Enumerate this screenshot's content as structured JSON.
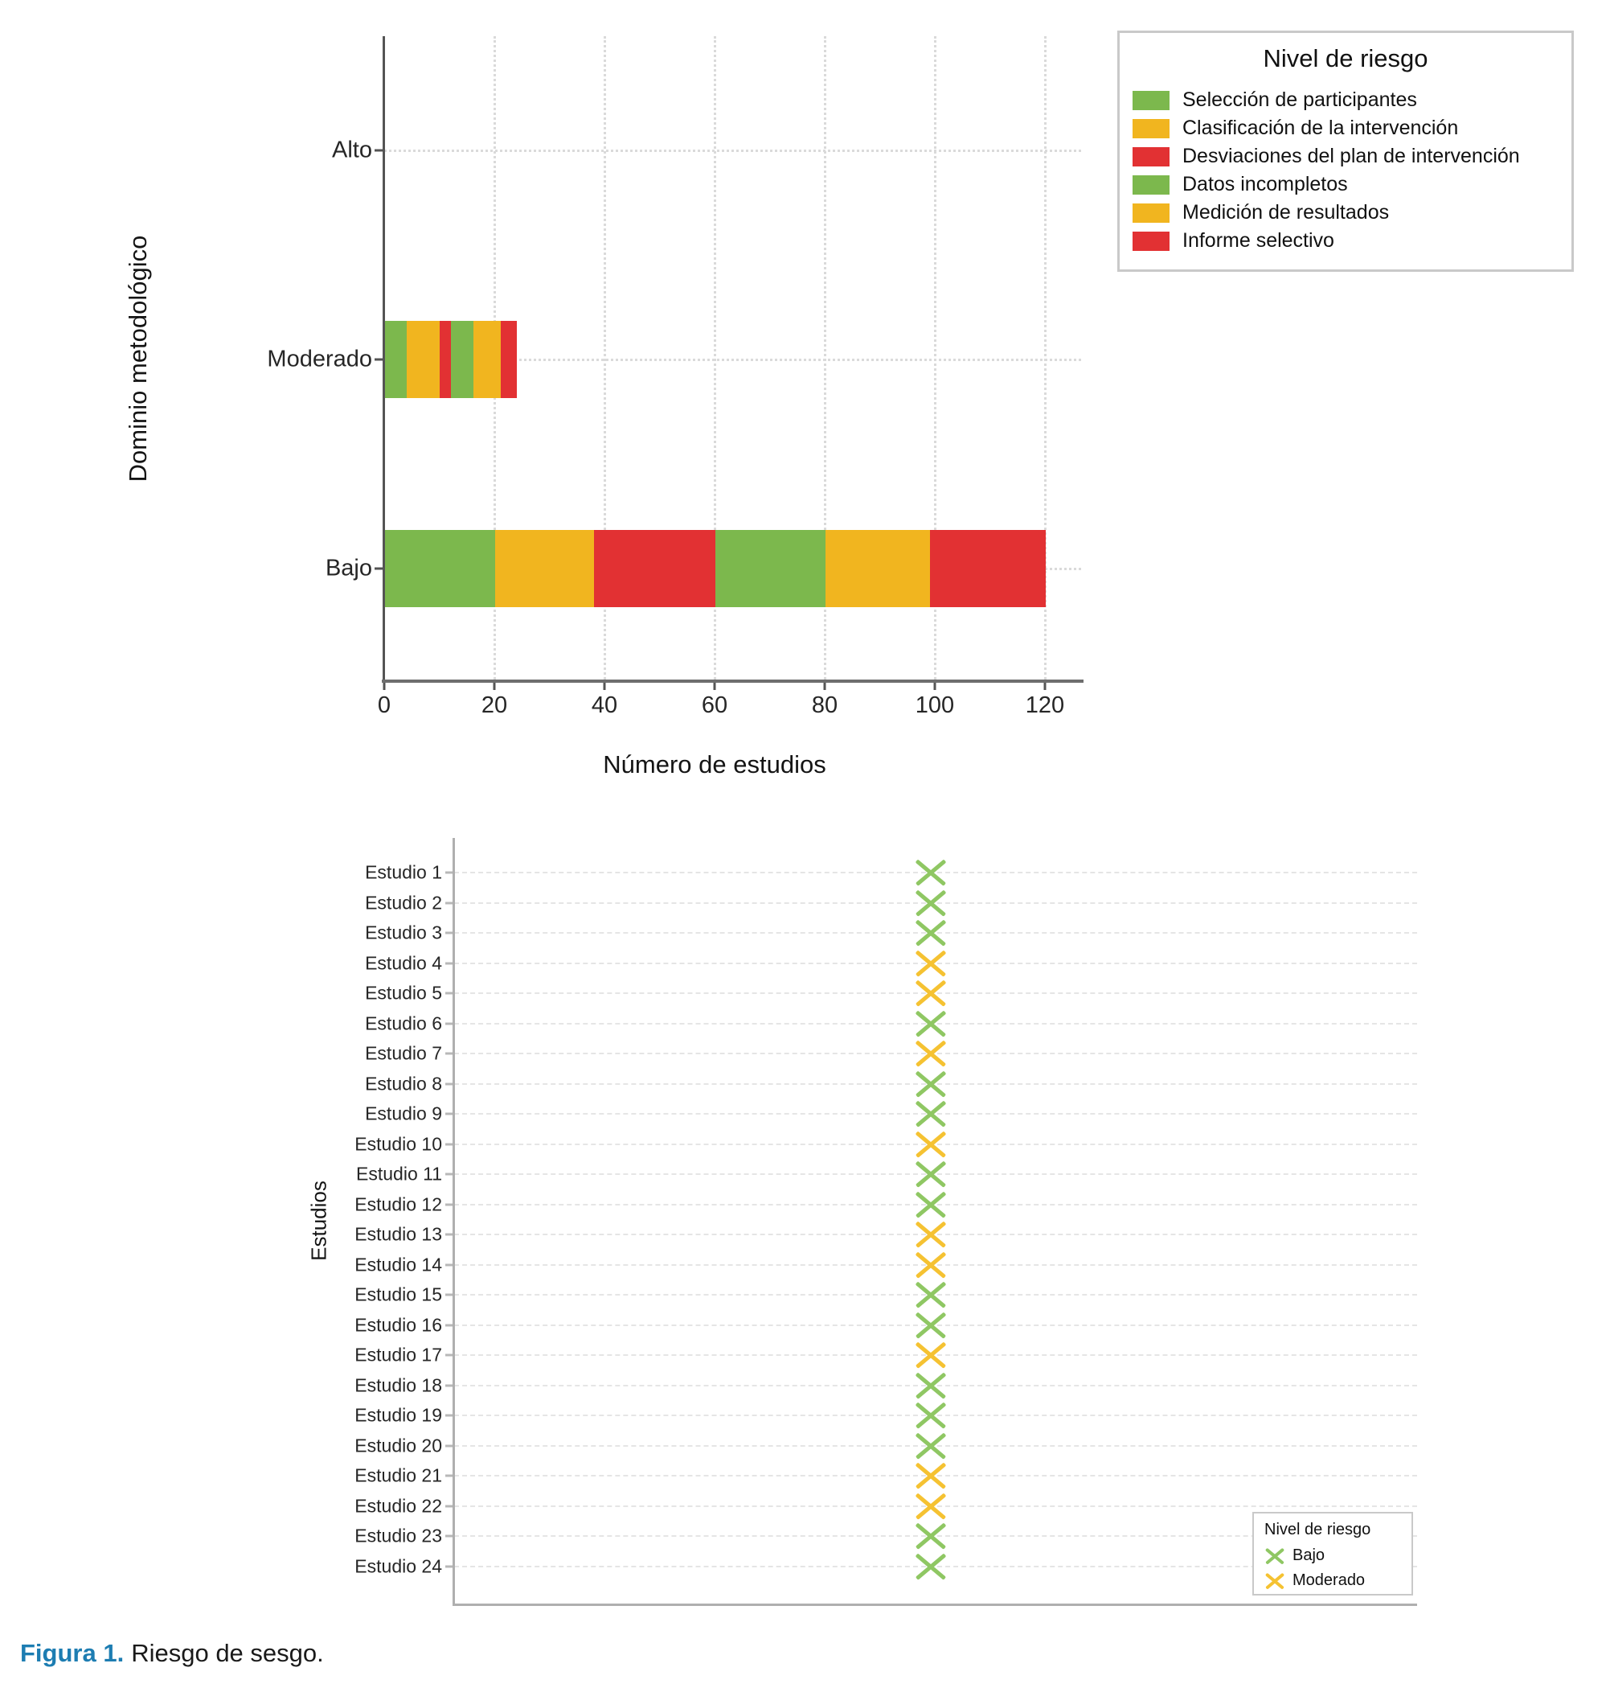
{
  "figure": {
    "caption": {
      "label": "Figura 1.",
      "text": "Riesgo de sesgo.",
      "label_color": "#1D7DB2"
    }
  },
  "colors": {
    "green": "#7CB84D",
    "amber": "#F1B51F",
    "red": "#E23133",
    "marker_green": "#8FC763",
    "marker_amber": "#F5C232"
  },
  "chart_data": [
    {
      "type": "bar",
      "orientation": "horizontal",
      "stacked": true,
      "title": "",
      "xlabel": "Número de estudios",
      "ylabel": "Dominio metodológico",
      "categories": [
        "Alto",
        "Moderado",
        "Bajo"
      ],
      "xlim": [
        0,
        127
      ],
      "xticks": [
        0,
        20,
        40,
        60,
        80,
        100,
        120
      ],
      "grid": "dotted",
      "legend": {
        "title": "Nivel de riesgo",
        "position": "top-right"
      },
      "series": [
        {
          "name": "Selección de participantes",
          "color_key": "green",
          "values": [
            0,
            4,
            20
          ]
        },
        {
          "name": "Clasificación de la intervención",
          "color_key": "amber",
          "values": [
            0,
            6,
            18
          ]
        },
        {
          "name": "Desviaciones del plan de intervención",
          "color_key": "red",
          "values": [
            0,
            2,
            22
          ]
        },
        {
          "name": "Datos incompletos",
          "color_key": "green",
          "values": [
            0,
            4,
            20
          ]
        },
        {
          "name": "Medición de resultados",
          "color_key": "amber",
          "values": [
            0,
            5,
            19
          ]
        },
        {
          "name": "Informe selectivo",
          "color_key": "red",
          "values": [
            0,
            3,
            21
          ]
        }
      ]
    },
    {
      "type": "scatter",
      "marker": "x",
      "title": "",
      "xlabel": "",
      "ylabel": "Estudios",
      "grid": "dashed",
      "legend": {
        "title": "Nivel de riesgo",
        "position": "bottom-right",
        "items": [
          {
            "label": "Bajo",
            "color_key": "marker_green"
          },
          {
            "label": "Moderado",
            "color_key": "marker_amber"
          }
        ]
      },
      "studies": [
        {
          "label": "Estudio 1",
          "risk": "Bajo"
        },
        {
          "label": "Estudio 2",
          "risk": "Bajo"
        },
        {
          "label": "Estudio 3",
          "risk": "Bajo"
        },
        {
          "label": "Estudio 4",
          "risk": "Moderado"
        },
        {
          "label": "Estudio 5",
          "risk": "Moderado"
        },
        {
          "label": "Estudio 6",
          "risk": "Bajo"
        },
        {
          "label": "Estudio 7",
          "risk": "Moderado"
        },
        {
          "label": "Estudio 8",
          "risk": "Bajo"
        },
        {
          "label": "Estudio 9",
          "risk": "Bajo"
        },
        {
          "label": "Estudio 10",
          "risk": "Moderado"
        },
        {
          "label": "Estudio 11",
          "risk": "Bajo"
        },
        {
          "label": "Estudio 12",
          "risk": "Bajo"
        },
        {
          "label": "Estudio 13",
          "risk": "Moderado"
        },
        {
          "label": "Estudio 14",
          "risk": "Moderado"
        },
        {
          "label": "Estudio 15",
          "risk": "Bajo"
        },
        {
          "label": "Estudio 16",
          "risk": "Bajo"
        },
        {
          "label": "Estudio 17",
          "risk": "Moderado"
        },
        {
          "label": "Estudio 18",
          "risk": "Bajo"
        },
        {
          "label": "Estudio 19",
          "risk": "Bajo"
        },
        {
          "label": "Estudio 20",
          "risk": "Bajo"
        },
        {
          "label": "Estudio 21",
          "risk": "Moderado"
        },
        {
          "label": "Estudio 22",
          "risk": "Moderado"
        },
        {
          "label": "Estudio 23",
          "risk": "Bajo"
        },
        {
          "label": "Estudio 24",
          "risk": "Bajo"
        }
      ]
    }
  ]
}
